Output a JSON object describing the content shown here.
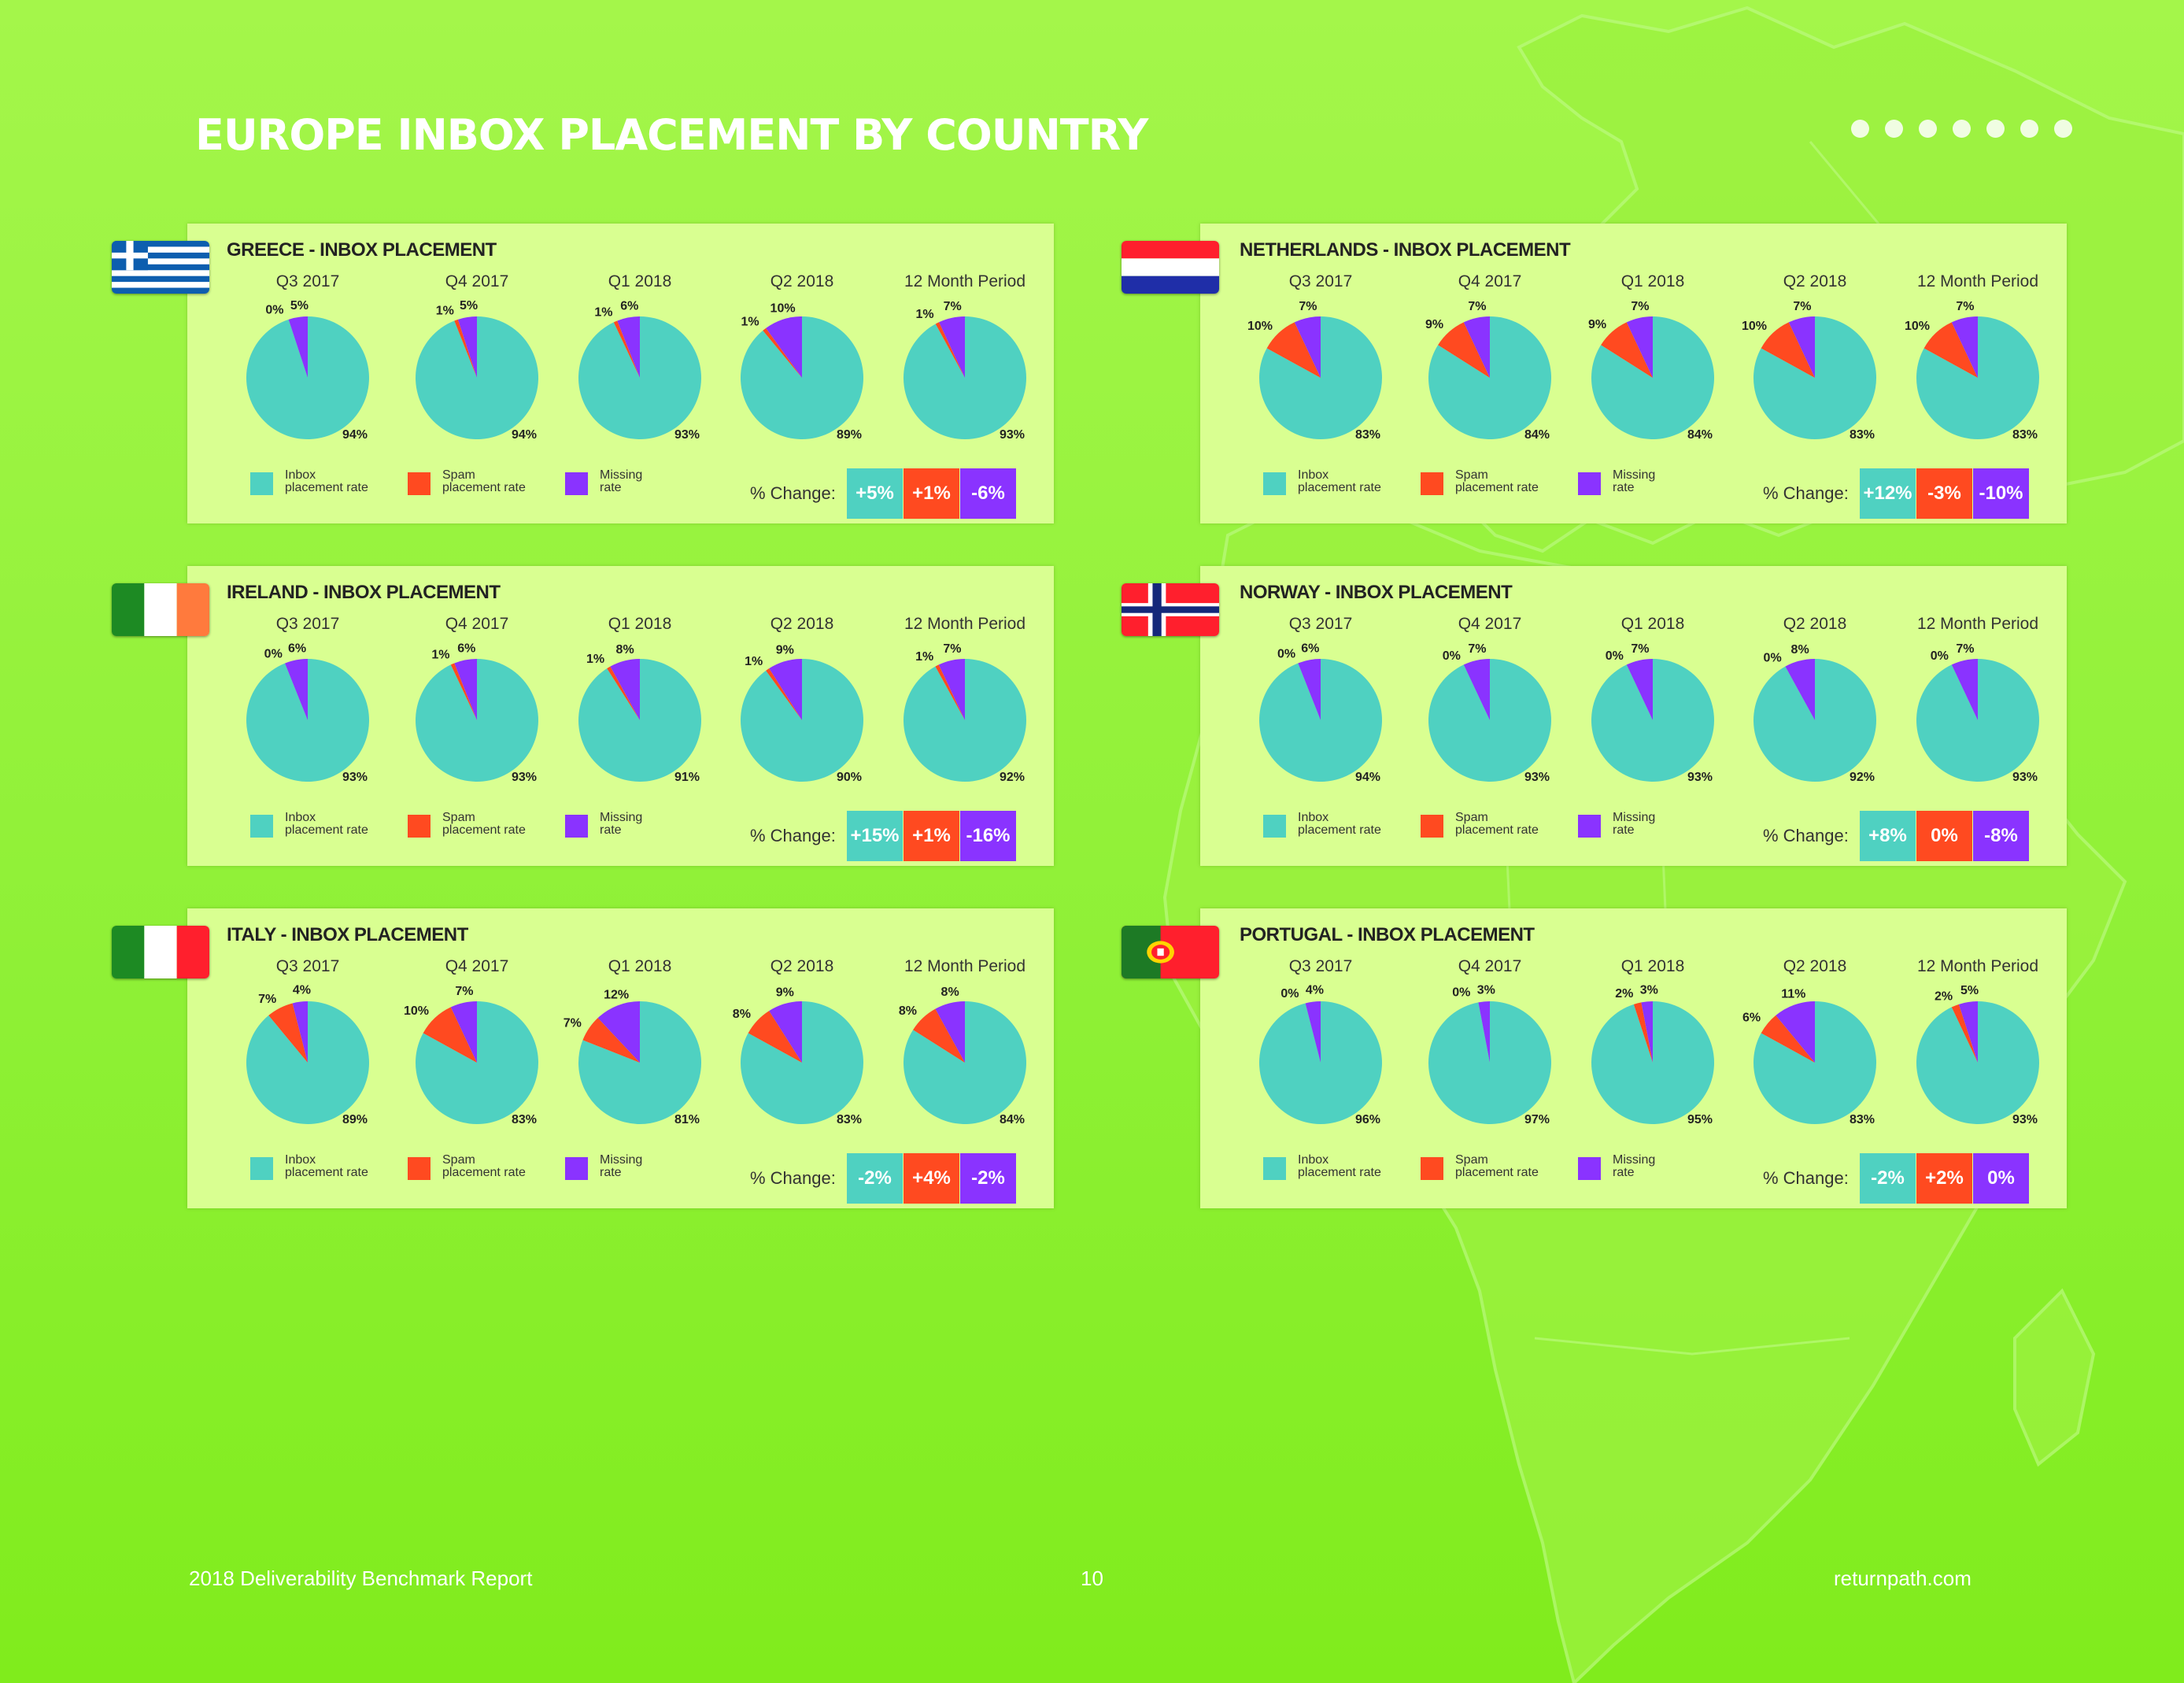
{
  "page_title": "EUROPE INBOX PLACEMENT BY COUNTRY",
  "colors": {
    "inbox": "#4fd1c1",
    "spam": "#ff4a20",
    "missing": "#8a33ff",
    "panel": "#d9ff91"
  },
  "period_labels": [
    "Q3 2017",
    "Q4 2017",
    "Q1 2018",
    "Q2 2018",
    "12 Month Period"
  ],
  "legend": {
    "inbox": [
      "Inbox",
      "placement rate"
    ],
    "spam": [
      "Spam",
      "placement rate"
    ],
    "missing": [
      "Missing",
      "rate"
    ]
  },
  "change_label": "% Change:",
  "footer": {
    "left": "2018 Deliverability Benchmark Report",
    "page_number": "10",
    "right": "returnpath.com"
  },
  "chart_data": [
    {
      "type": "pie",
      "title": "GREECE - INBOX PLACEMENT",
      "flag": "greece-flag",
      "categories": [
        "Q3 2017",
        "Q4 2017",
        "Q1 2018",
        "Q2 2018",
        "12 Month Period"
      ],
      "series": [
        {
          "name": "Inbox placement rate",
          "values": [
            94,
            94,
            93,
            89,
            93
          ]
        },
        {
          "name": "Spam placement rate",
          "values": [
            0,
            1,
            1,
            1,
            1
          ]
        },
        {
          "name": "Missing rate",
          "values": [
            5,
            5,
            6,
            10,
            7
          ]
        }
      ],
      "change": [
        "+5%",
        "+1%",
        "-6%"
      ]
    },
    {
      "type": "pie",
      "title": "NETHERLANDS - INBOX PLACEMENT",
      "flag": "netherlands-flag",
      "categories": [
        "Q3 2017",
        "Q4 2017",
        "Q1 2018",
        "Q2 2018",
        "12 Month Period"
      ],
      "series": [
        {
          "name": "Inbox placement rate",
          "values": [
            83,
            84,
            84,
            83,
            83
          ]
        },
        {
          "name": "Spam placement rate",
          "values": [
            10,
            9,
            9,
            10,
            10
          ]
        },
        {
          "name": "Missing rate",
          "values": [
            7,
            7,
            7,
            7,
            7
          ]
        }
      ],
      "change": [
        "+12%",
        "-3%",
        "-10%"
      ]
    },
    {
      "type": "pie",
      "title": "IRELAND - INBOX PLACEMENT",
      "flag": "ireland-flag",
      "categories": [
        "Q3 2017",
        "Q4 2017",
        "Q1 2018",
        "Q2 2018",
        "12 Month Period"
      ],
      "series": [
        {
          "name": "Inbox placement rate",
          "values": [
            93,
            93,
            91,
            90,
            92
          ]
        },
        {
          "name": "Spam placement rate",
          "values": [
            0,
            1,
            1,
            1,
            1
          ]
        },
        {
          "name": "Missing rate",
          "values": [
            6,
            6,
            8,
            9,
            7
          ]
        }
      ],
      "change": [
        "+15%",
        "+1%",
        "-16%"
      ]
    },
    {
      "type": "pie",
      "title": "NORWAY - INBOX PLACEMENT",
      "flag": "norway-flag",
      "categories": [
        "Q3 2017",
        "Q4 2017",
        "Q1 2018",
        "Q2 2018",
        "12 Month Period"
      ],
      "series": [
        {
          "name": "Inbox placement rate",
          "values": [
            94,
            93,
            93,
            92,
            93
          ]
        },
        {
          "name": "Spam placement rate",
          "values": [
            0,
            0,
            0,
            0,
            0
          ]
        },
        {
          "name": "Missing rate",
          "values": [
            6,
            7,
            7,
            8,
            7
          ]
        }
      ],
      "change": [
        "+8%",
        "0%",
        "-8%"
      ]
    },
    {
      "type": "pie",
      "title": "ITALY - INBOX PLACEMENT",
      "flag": "italy-flag",
      "categories": [
        "Q3 2017",
        "Q4 2017",
        "Q1 2018",
        "Q2 2018",
        "12 Month Period"
      ],
      "series": [
        {
          "name": "Inbox placement rate",
          "values": [
            89,
            83,
            81,
            83,
            84
          ]
        },
        {
          "name": "Spam placement rate",
          "values": [
            7,
            10,
            7,
            8,
            8
          ]
        },
        {
          "name": "Missing rate",
          "values": [
            4,
            7,
            12,
            9,
            8
          ]
        }
      ],
      "change": [
        "-2%",
        "+4%",
        "-2%"
      ]
    },
    {
      "type": "pie",
      "title": "PORTUGAL - INBOX PLACEMENT",
      "flag": "portugal-flag",
      "categories": [
        "Q3 2017",
        "Q4 2017",
        "Q1 2018",
        "Q2 2018",
        "12 Month Period"
      ],
      "series": [
        {
          "name": "Inbox placement rate",
          "values": [
            96,
            97,
            95,
            83,
            93
          ]
        },
        {
          "name": "Spam placement rate",
          "values": [
            0,
            0,
            2,
            6,
            2
          ]
        },
        {
          "name": "Missing rate",
          "values": [
            4,
            3,
            3,
            11,
            5
          ]
        }
      ],
      "change": [
        "-2%",
        "+2%",
        "0%"
      ]
    }
  ]
}
